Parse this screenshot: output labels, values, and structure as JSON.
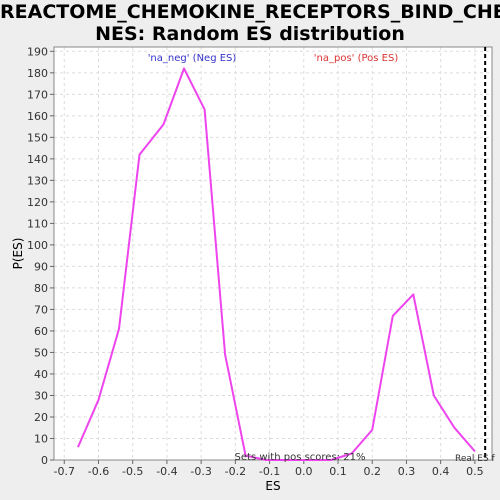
{
  "chart_data": {
    "type": "line",
    "title_line1": "REACTOME_CHEMOKINE_RECEPTORS_BIND_CHEMOKINES",
    "title_line2": "NES: Random ES distribution",
    "xlabel": "ES",
    "ylabel": "P(ES)",
    "xlim": [
      -0.73,
      0.55
    ],
    "ylim": [
      0,
      192
    ],
    "x_ticks": [
      -0.7,
      -0.6,
      -0.5,
      -0.4,
      -0.3,
      -0.2,
      -0.1,
      0.0,
      0.1,
      0.2,
      0.3,
      0.4,
      0.5
    ],
    "x_tick_labels": [
      "-0.7",
      "-0.6",
      "-0.5",
      "-0.4",
      "-0.3",
      "-0.2",
      "-0.1",
      "0.0",
      "0.1",
      "0.2",
      "0.3",
      "0.4",
      "0.5"
    ],
    "y_ticks": [
      0,
      10,
      20,
      30,
      40,
      50,
      60,
      70,
      80,
      90,
      100,
      110,
      120,
      130,
      140,
      150,
      160,
      170,
      180,
      190
    ],
    "grid": true,
    "series": [
      {
        "color": "#ee44ee",
        "x": [
          -0.66,
          -0.6,
          -0.54,
          -0.48,
          -0.41,
          -0.35,
          -0.29,
          -0.23,
          -0.17,
          -0.11,
          -0.05,
          0.02,
          0.08,
          0.14,
          0.2,
          0.26,
          0.32,
          0.38,
          0.44,
          0.5
        ],
        "y": [
          6,
          28,
          61,
          142,
          156,
          182,
          163,
          49,
          2,
          0,
          0,
          0,
          0,
          3,
          14,
          67,
          77,
          30,
          15,
          4
        ]
      }
    ],
    "annotations": {
      "neg_label": "'na_neg' (Neg ES)",
      "neg_color": "#3333cc",
      "pos_label": "'na_pos' (Pos ES)",
      "pos_color": "#dd3333",
      "pos_scores_text": "Sets with pos scores: 21%",
      "real_es_text": "Real ES f",
      "real_es_value": 0.53
    }
  }
}
